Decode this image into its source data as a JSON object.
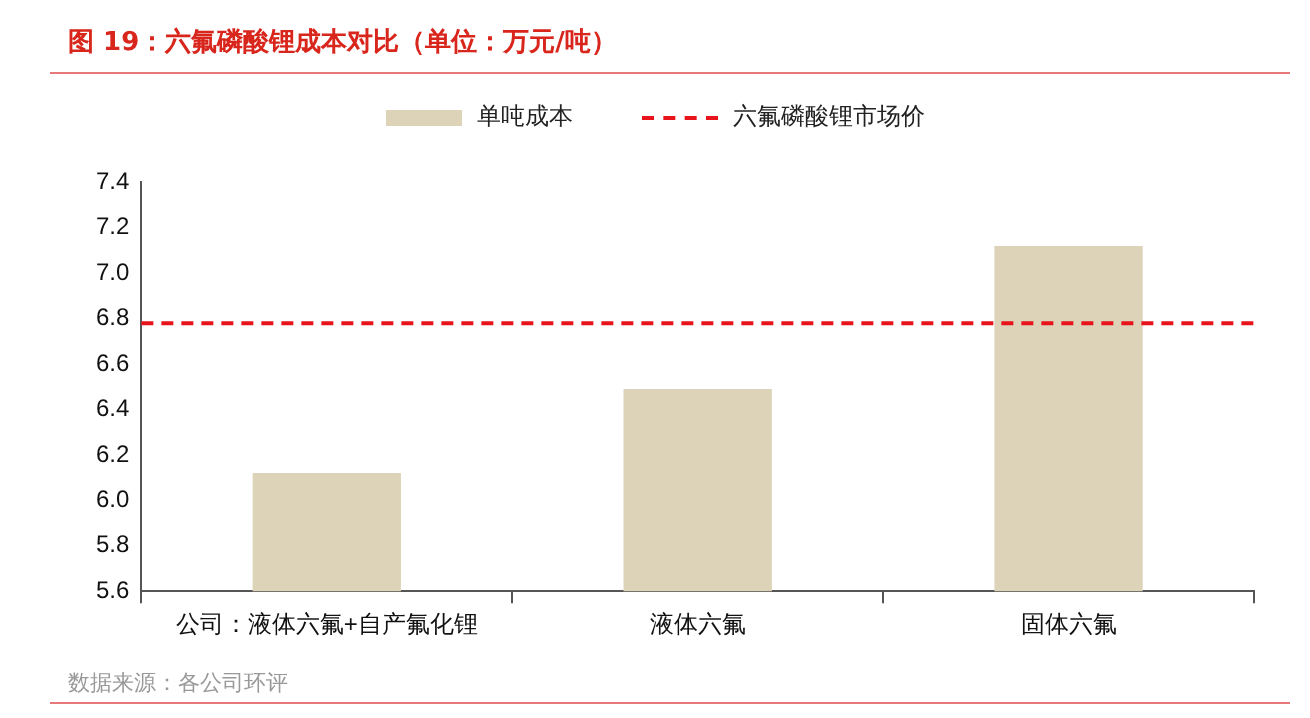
{
  "chart_data": {
    "type": "bar",
    "title": "图 19：六氟磷酸锂成本对比（单位：万元/吨）",
    "categories": [
      "公司：液体六氟+自产氟化锂",
      "液体六氟",
      "固体六氟"
    ],
    "series": [
      {
        "name": "单吨成本",
        "color": "#ddd3b8",
        "values": [
          6.12,
          6.49,
          7.12
        ]
      }
    ],
    "ylim": [
      5.6,
      7.4
    ],
    "yticks": [
      {
        "value": 5.6,
        "label": "5.6"
      },
      {
        "value": 5.8,
        "label": "5.8"
      },
      {
        "value": 6.0,
        "label": "6.0"
      },
      {
        "value": 6.2,
        "label": "6.2"
      },
      {
        "value": 6.4,
        "label": "6.4"
      },
      {
        "value": 6.6,
        "label": "6.6"
      },
      {
        "value": 6.8,
        "label": "6.8"
      },
      {
        "value": 7.0,
        "label": "7.0"
      },
      {
        "value": 7.2,
        "label": "7.2"
      },
      {
        "value": 7.4,
        "label": "7.4"
      }
    ],
    "ref_lines": [
      {
        "axis": "y",
        "value": 6.78,
        "label": "六氟磷酸锂市场价",
        "color": "#e8141b",
        "line_style": "dashed"
      }
    ],
    "grid": false,
    "legend": "top",
    "annotations": [
      "数据来源：各公司环评"
    ]
  }
}
